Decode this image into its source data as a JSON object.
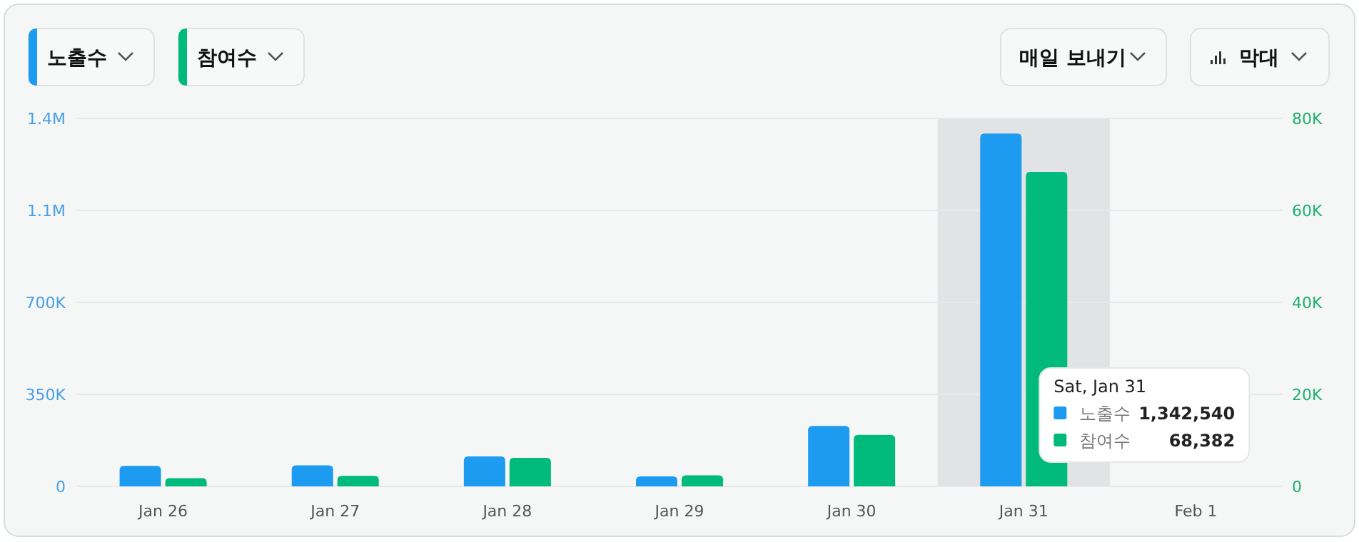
{
  "chart_data": {
    "type": "bar",
    "categories": [
      "Jan 26",
      "Jan 27",
      "Jan 28",
      "Jan 29",
      "Jan 30",
      "Jan 31",
      "Feb 1"
    ],
    "series": [
      {
        "name": "노출수",
        "color": "#1d9bf0",
        "values": [
          78000,
          80000,
          114000,
          38000,
          230000,
          1342540,
          null
        ]
      },
      {
        "name": "참여수",
        "color": "#00ba7c",
        "axis": "y2",
        "values": [
          1800,
          2300,
          6200,
          2400,
          11200,
          68382,
          null
        ]
      }
    ],
    "ylim": [
      0,
      1400000
    ],
    "yticks": [
      0,
      {
        "value": 350000,
        "label": "350K"
      },
      {
        "value": 700000,
        "label": "700K"
      },
      {
        "value": 1050000,
        "label": "1.1M"
      },
      {
        "value": 1400000,
        "label": "1.4M"
      }
    ],
    "y2lim": [
      0,
      80000
    ],
    "y2ticks": [
      0,
      {
        "value": 20000,
        "label": "20K"
      },
      {
        "value": 40000,
        "label": "40K"
      },
      {
        "value": 60000,
        "label": "60K"
      },
      {
        "value": 80000,
        "label": "80K"
      }
    ],
    "grid": true,
    "legend": "bottom right",
    "bands": [
      {
        "axis": "x",
        "from": "Jan 31",
        "to": "Jan 31",
        "color": "#e1e3e5"
      }
    ],
    "annotations": [
      "매일 보내기",
      "막대",
      "Sat, Jan 31",
      "1,342,540",
      "68,382"
    ]
  }
}
